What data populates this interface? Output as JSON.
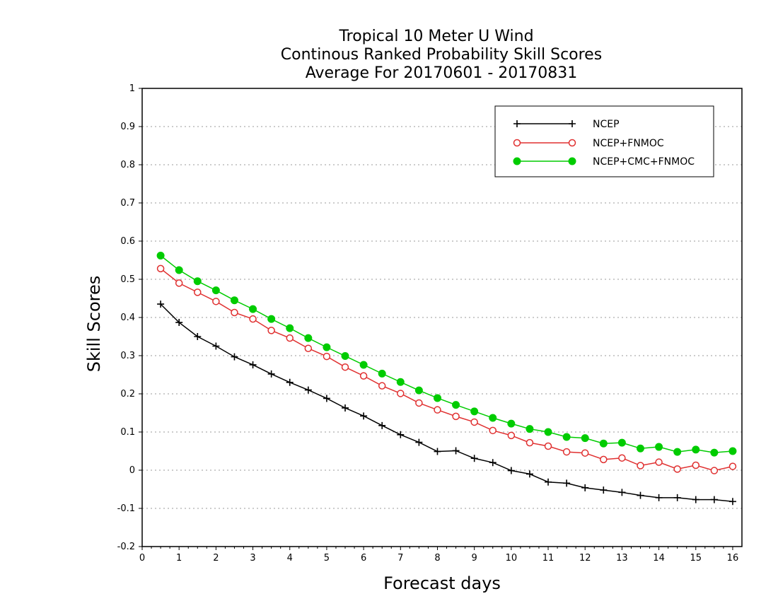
{
  "chart_data": {
    "type": "line",
    "title_lines": [
      "Tropical 10 Meter U Wind",
      "Continous Ranked Probability Skill Scores",
      "Average For 20170601 - 20170831"
    ],
    "xlabel": "Forecast days",
    "ylabel": "Skill Scores",
    "xlim": [
      0,
      16.25
    ],
    "ylim": [
      -0.2,
      1
    ],
    "x_ticks": [
      0,
      1,
      2,
      3,
      4,
      5,
      6,
      7,
      8,
      9,
      10,
      11,
      12,
      13,
      14,
      15,
      16
    ],
    "x_tick_labels": [
      "0",
      "1",
      "2",
      "3",
      "4",
      "5",
      "6",
      "7",
      "8",
      "9",
      "10",
      "11",
      "12",
      "13",
      "14",
      "15",
      "16"
    ],
    "y_ticks": [
      -0.2,
      -0.1,
      0,
      0.1,
      0.2,
      0.3,
      0.4,
      0.5,
      0.6,
      0.7,
      0.8,
      0.9,
      1
    ],
    "y_tick_labels": [
      "-0.2",
      "-0.1",
      "0",
      "0.1",
      "0.2",
      "0.3",
      "0.4",
      "0.5",
      "0.6",
      "0.7",
      "0.8",
      "0.9",
      "1"
    ],
    "grid": "horizontal dotted",
    "legend_position": "top-right",
    "x": [
      0.5,
      1,
      1.5,
      2,
      2.5,
      3,
      3.5,
      4,
      4.5,
      5,
      5.5,
      6,
      6.5,
      7,
      7.5,
      8,
      8.5,
      9,
      9.5,
      10,
      10.5,
      11,
      11.5,
      12,
      12.5,
      13,
      13.5,
      14,
      14.5,
      15,
      15.5,
      16
    ],
    "series": [
      {
        "name": "NCEP",
        "color": "#000000",
        "marker": "plus",
        "values": [
          0.435,
          0.387,
          0.35,
          0.325,
          0.297,
          0.276,
          0.252,
          0.23,
          0.21,
          0.188,
          0.163,
          0.142,
          0.117,
          0.093,
          0.073,
          0.049,
          0.051,
          0.031,
          0.02,
          -0.001,
          -0.01,
          -0.031,
          -0.034,
          -0.046,
          -0.052,
          -0.058,
          -0.066,
          -0.072,
          -0.072,
          -0.077,
          -0.077,
          -0.082
        ]
      },
      {
        "name": "NCEP+FNMOC",
        "color": "#e03030",
        "marker": "open-circle",
        "values": [
          0.528,
          0.49,
          0.466,
          0.442,
          0.413,
          0.396,
          0.366,
          0.346,
          0.319,
          0.298,
          0.27,
          0.247,
          0.221,
          0.201,
          0.176,
          0.158,
          0.141,
          0.126,
          0.104,
          0.091,
          0.072,
          0.063,
          0.048,
          0.045,
          0.028,
          0.032,
          0.012,
          0.021,
          0.003,
          0.013,
          -0.001,
          0.01
        ]
      },
      {
        "name": "NCEP+CMC+FNMOC",
        "color": "#00cc00",
        "marker": "filled-circle",
        "values": [
          0.562,
          0.524,
          0.495,
          0.471,
          0.445,
          0.422,
          0.396,
          0.372,
          0.346,
          0.322,
          0.299,
          0.276,
          0.253,
          0.231,
          0.209,
          0.189,
          0.171,
          0.154,
          0.137,
          0.122,
          0.108,
          0.1,
          0.087,
          0.084,
          0.07,
          0.072,
          0.057,
          0.061,
          0.048,
          0.054,
          0.046,
          0.05
        ]
      }
    ]
  }
}
